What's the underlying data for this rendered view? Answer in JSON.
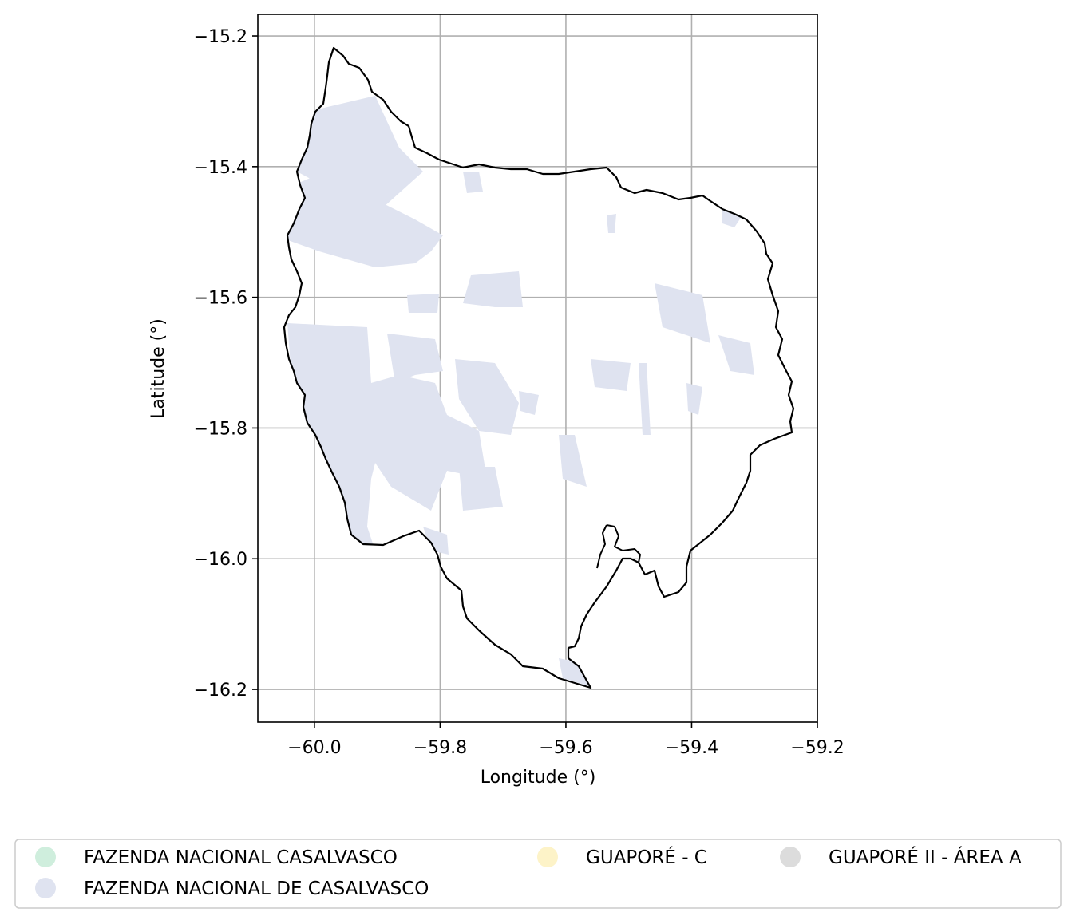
{
  "map": {
    "xlabel": "Longitude (°)",
    "ylabel": "Latitude (°)",
    "xlim": [
      -60.09,
      -59.2
    ],
    "ylim": [
      -16.25,
      -15.167
    ],
    "x_ticks": [
      "−60.0",
      "−59.8",
      "−59.6",
      "−59.4",
      "−59.2"
    ],
    "x_tick_values": [
      -60.0,
      -59.8,
      -59.6,
      -59.4,
      -59.2
    ],
    "y_ticks": [
      "−15.2",
      "−15.4",
      "−15.6",
      "−15.8",
      "−16.0",
      "−16.2"
    ],
    "y_tick_values": [
      -15.2,
      -15.4,
      -15.6,
      -15.8,
      -16.0,
      -16.2
    ],
    "grid": true,
    "boundary_color": "#000000",
    "fill_color": "#dfe3f0"
  },
  "legend": {
    "placement": "bottom-center",
    "items": [
      {
        "label": "FAZENDA NACIONAL CASALVASCO",
        "color": "#cfeedd"
      },
      {
        "label": "FAZENDA NACIONAL DE CASALVASCO",
        "color": "#dfe3f0"
      },
      {
        "label": "GUAPORÉ - C",
        "color": "#fdf3c8"
      },
      {
        "label": "GUAPORÉ II - ÁREA A",
        "color": "#dcdcdc"
      }
    ]
  }
}
